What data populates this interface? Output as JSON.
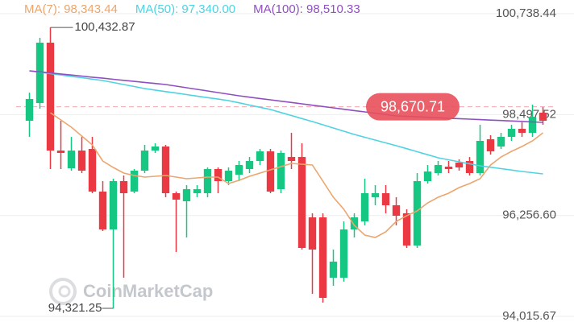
{
  "chart_data": {
    "type": "candlestick",
    "legend": [
      {
        "name": "MA(7): 98,343.44",
        "color": "#eba66e"
      },
      {
        "name": "MA(50): 97,340.00",
        "color": "#4fd3e3"
      },
      {
        "name": "MA(100): 98,510.33",
        "color": "#8e4fc0"
      }
    ],
    "candles": {
      "up_color": "#16c784",
      "down_color": "#ea3943",
      "open": [
        98361,
        98754,
        100095,
        97699,
        97306,
        97699,
        97735,
        96788,
        95947,
        97020,
        96788,
        97252,
        97699,
        97789,
        96752,
        96573,
        96752,
        96752,
        97288,
        97020,
        97163,
        97288,
        97467,
        97681,
        96841,
        97556,
        97556,
        96215,
        96215,
        94875,
        94875,
        95947,
        96126,
        96663,
        96752,
        96484,
        96305,
        95590,
        97020,
        97199,
        97342,
        97431,
        97467,
        97199,
        97950,
        97789,
        98003,
        98182,
        98093,
        98540
      ],
      "high": [
        98987,
        100203,
        100432.87,
        98361,
        98003,
        98003,
        98003,
        97020,
        97074,
        97145,
        97288,
        97825,
        97860,
        97825,
        96788,
        96931,
        96931,
        97324,
        97324,
        97324,
        97467,
        97556,
        97735,
        97735,
        97699,
        98093,
        97860,
        96305,
        96305,
        95500,
        96126,
        96305,
        97074,
        96931,
        96931,
        96663,
        96394,
        97199,
        97378,
        97467,
        97467,
        97503,
        97556,
        98272,
        98039,
        98093,
        98272,
        98325,
        98719,
        98665
      ],
      "low": [
        98003,
        98629,
        97288,
        97288,
        97252,
        97199,
        96752,
        95911,
        94195,
        94875,
        96752,
        97199,
        97646,
        96663,
        95447,
        95769,
        96663,
        96663,
        96752,
        96931,
        97020,
        97199,
        97378,
        96752,
        96752,
        97288,
        95500,
        94517,
        94321.25,
        94696,
        94786,
        95769,
        96037,
        96484,
        96305,
        96037,
        95536,
        95536,
        96966,
        97145,
        97199,
        97252,
        97145,
        97145,
        97610,
        97735,
        97914,
        98003,
        98003,
        98272
      ],
      "close": [
        98844,
        100095,
        97699,
        97646,
        97699,
        97252,
        96788,
        95947,
        97020,
        96752,
        97252,
        97699,
        97789,
        96752,
        96609,
        96841,
        96841,
        97288,
        97020,
        97252,
        97378,
        97467,
        97681,
        96788,
        97646,
        97467,
        95536,
        95500,
        94427,
        95232,
        95947,
        96215,
        96752,
        96752,
        96484,
        96251,
        95590,
        97020,
        97234,
        97378,
        97288,
        97324,
        97199,
        97914,
        97681,
        98003,
        98182,
        98093,
        98450,
        98361
      ]
    },
    "series": [
      {
        "name": "MA(7)",
        "color": "#eba66e",
        "values": [
          null,
          null,
          98540,
          98379,
          98218,
          98021,
          97825,
          97467,
          97324,
          97199,
          97145,
          97110,
          97127,
          97145,
          97110,
          97074,
          97092,
          97110,
          97110,
          96966,
          97038,
          97127,
          97199,
          97270,
          97342,
          97413,
          97395,
          97378,
          97020,
          96663,
          96394,
          96037,
          95822,
          95768,
          95894,
          96126,
          96251,
          96358,
          96537,
          96663,
          96752,
          96877,
          96966,
          97074,
          97378,
          97556,
          97681,
          97789,
          97914,
          98093
        ]
      },
      {
        "name": "MA(50)",
        "color": "#4fd3e3",
        "values": [
          99470,
          99439,
          99409,
          99378,
          99347,
          99317,
          99286,
          99255,
          99210,
          99166,
          99121,
          99076,
          99043,
          99009,
          98976,
          98942,
          98909,
          98875,
          98842,
          98808,
          98759,
          98710,
          98660,
          98611,
          98544,
          98477,
          98410,
          98343,
          98272,
          98200,
          98129,
          98057,
          97995,
          97932,
          97870,
          97807,
          97740,
          97673,
          97606,
          97539,
          97494,
          97450,
          97405,
          97360,
          97329,
          97297,
          97266,
          97234,
          97208,
          97181
        ]
      },
      {
        "name": "MA(100)",
        "color": "#8e4fc0",
        "values": [
          99470,
          99447,
          99423,
          99400,
          99376,
          99353,
          99329,
          99306,
          99282,
          99259,
          99235,
          99212,
          99188,
          99165,
          99129,
          99094,
          99058,
          99022,
          98987,
          98951,
          98915,
          98885,
          98855,
          98826,
          98796,
          98766,
          98736,
          98706,
          98677,
          98647,
          98617,
          98587,
          98557,
          98528,
          98498,
          98468,
          98458,
          98448,
          98437,
          98427,
          98417,
          98407,
          98397,
          98386,
          98376,
          98366,
          98356,
          98346,
          98335,
          98325
        ]
      }
    ],
    "ylim": [
      93891,
      101043
    ],
    "yticks": [
      {
        "value": 94015.67,
        "label": "94,015.67"
      },
      {
        "value": 96256.6,
        "label": "96,256.60"
      },
      {
        "value": 98497.52,
        "label": "98,497.52"
      },
      {
        "value": 100738.44,
        "label": "100,738.44"
      }
    ],
    "grid": true,
    "high_label": "100,432.87",
    "low_label": "94,321.25",
    "last_price": {
      "value": 98670.71,
      "label": "98,670.71",
      "color": "#e8505b"
    },
    "watermark": "CoinMarketCap"
  }
}
